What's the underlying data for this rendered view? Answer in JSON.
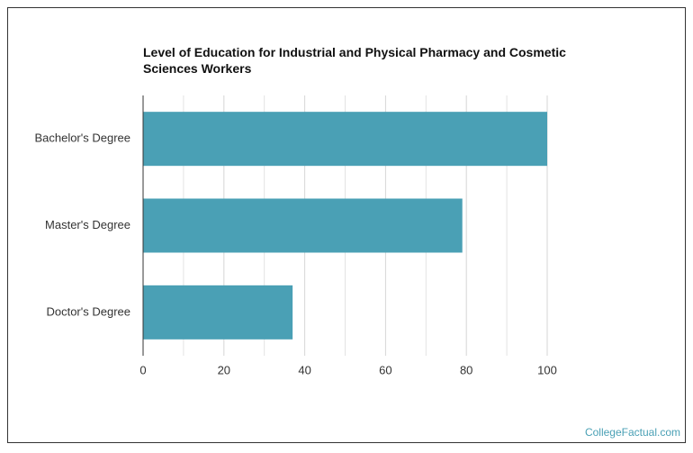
{
  "chart_data": {
    "type": "barh",
    "title": "Level of Education for Industrial and Physical Pharmacy and Cosmetic Sciences Workers",
    "source": "CollegeFactual.com",
    "categories": [
      "Bachelor's Degree",
      "Master's Degree",
      "Doctor's Degree"
    ],
    "values": [
      100,
      79,
      37
    ],
    "color": "#4aa0b5",
    "xlim": [
      0,
      100
    ],
    "xticks": [
      0,
      20,
      40,
      60,
      80,
      100
    ],
    "xminorticks": [
      10,
      30,
      50,
      70,
      90
    ],
    "grid": true
  }
}
